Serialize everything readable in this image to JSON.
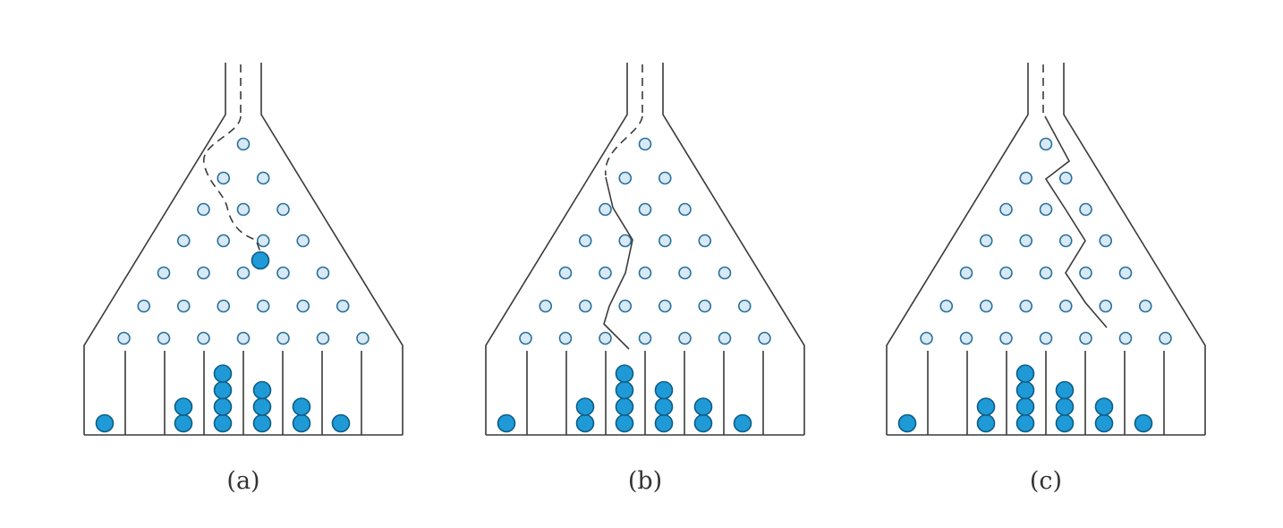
{
  "colors": {
    "background": "#ffffff",
    "outline": "#3a3a3a",
    "peg_fill": "#d6e9f5",
    "peg_stroke": "#2a6f9a",
    "ball_fill": "#1f9ad6",
    "ball_stroke": "#0b5c86",
    "caption": "#333333"
  },
  "panels": [
    {
      "id": "a",
      "caption": "(a)",
      "path_style": "dashed",
      "falling_ball": true,
      "bin_counts": [
        1,
        0,
        2,
        4,
        3,
        2,
        1,
        0
      ]
    },
    {
      "id": "b",
      "caption": "(b)",
      "path_style": "mixed",
      "falling_ball": false,
      "bin_counts": [
        1,
        0,
        2,
        4,
        3,
        2,
        1,
        0
      ]
    },
    {
      "id": "c",
      "caption": "(c)",
      "path_style": "mixed",
      "falling_ball": false,
      "bin_counts": [
        1,
        0,
        2,
        4,
        3,
        2,
        1,
        0
      ]
    }
  ],
  "peg_rows": 7,
  "bins": 8
}
